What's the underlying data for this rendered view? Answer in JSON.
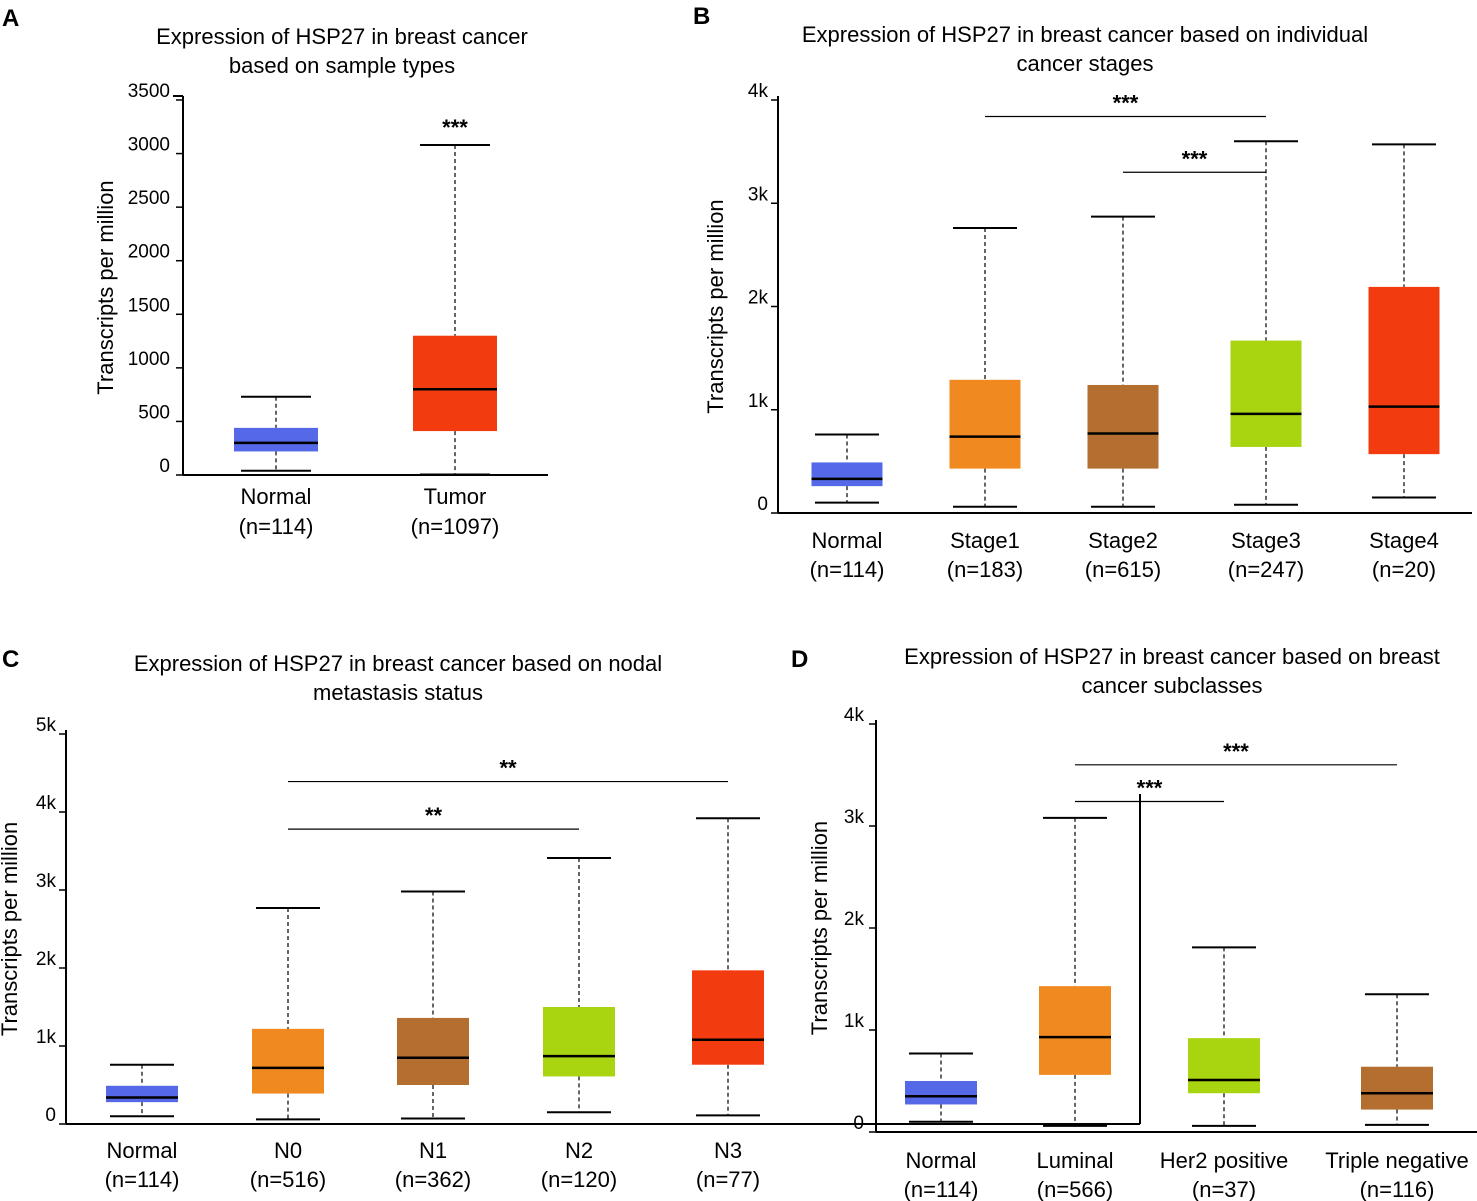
{
  "chart_data": [
    {
      "id": "A",
      "type": "box",
      "panel_label": "A",
      "title": [
        "Expression of HSP27 in breast cancer",
        "based on sample types"
      ],
      "ylabel": "Transcripts per million",
      "ylim": [
        0,
        3500
      ],
      "yticks": [
        0,
        500,
        1000,
        1500,
        2000,
        2500,
        3000,
        3500
      ],
      "ytick_labels": [
        "0",
        "500",
        "1000",
        "1500",
        "2000",
        "2500",
        "3000",
        "3500"
      ],
      "categories": [
        {
          "name": "Normal",
          "n": "(n=114)",
          "color": "#5468e8",
          "whisker_low": 40,
          "q1": 220,
          "median": 300,
          "q3": 440,
          "whisker_high": 730
        },
        {
          "name": "Tumor",
          "n": "(n=1097)",
          "color": "#f23c10",
          "whisker_low": 5,
          "q1": 410,
          "median": 800,
          "q3": 1300,
          "whisker_high": 3080
        }
      ],
      "significance": [
        {
          "label": "***",
          "category": 1
        }
      ]
    },
    {
      "id": "B",
      "type": "box",
      "panel_label": "B",
      "title": [
        "Expression of HSP27 in breast cancer based on individual",
        "cancer stages"
      ],
      "ylabel": "Transcripts per million",
      "ylim": [
        0,
        4000
      ],
      "yticks": [
        0,
        1000,
        2000,
        3000,
        4000
      ],
      "ytick_labels": [
        "0",
        "1k",
        "2k",
        "3k",
        "4k"
      ],
      "categories": [
        {
          "name": "Normal",
          "n": "(n=114)",
          "color": "#5468e8",
          "whisker_low": 100,
          "q1": 260,
          "median": 330,
          "q3": 490,
          "whisker_high": 760
        },
        {
          "name": "Stage1",
          "n": "(n=183)",
          "color": "#f08a20",
          "whisker_low": 60,
          "q1": 430,
          "median": 740,
          "q3": 1290,
          "whisker_high": 2760
        },
        {
          "name": "Stage2",
          "n": "(n=615)",
          "color": "#b36e30",
          "whisker_low": 60,
          "q1": 430,
          "median": 770,
          "q3": 1240,
          "whisker_high": 2870
        },
        {
          "name": "Stage3",
          "n": "(n=247)",
          "color": "#a8d410",
          "whisker_low": 80,
          "q1": 640,
          "median": 960,
          "q3": 1670,
          "whisker_high": 3600
        },
        {
          "name": "Stage4",
          "n": "(n=20)",
          "color": "#f23c10",
          "whisker_low": 150,
          "q1": 570,
          "median": 1030,
          "q3": 2190,
          "whisker_high": 3570
        }
      ],
      "significance": [
        {
          "label": "***",
          "from": 1,
          "to": 3,
          "level": 3840
        },
        {
          "label": "***",
          "from": 2,
          "to": 3,
          "level": 3300
        }
      ]
    },
    {
      "id": "C",
      "type": "box",
      "panel_label": "C",
      "title": [
        "Expression of HSP27 in breast cancer based on nodal",
        "metastasis status"
      ],
      "ylabel": "Transcripts per million",
      "ylim": [
        0,
        5000
      ],
      "yticks": [
        0,
        1000,
        2000,
        3000,
        4000,
        5000
      ],
      "ytick_labels": [
        "0",
        "1k",
        "2k",
        "3k",
        "4k",
        "5k"
      ],
      "categories": [
        {
          "name": "Normal",
          "n": "(n=114)",
          "color": "#5468e8",
          "whisker_low": 100,
          "q1": 280,
          "median": 340,
          "q3": 490,
          "whisker_high": 760
        },
        {
          "name": "N0",
          "n": "(n=516)",
          "color": "#f08a20",
          "whisker_low": 60,
          "q1": 390,
          "median": 720,
          "q3": 1220,
          "whisker_high": 2770
        },
        {
          "name": "N1",
          "n": "(n=362)",
          "color": "#b36e30",
          "whisker_low": 70,
          "q1": 500,
          "median": 850,
          "q3": 1360,
          "whisker_high": 2980
        },
        {
          "name": "N2",
          "n": "(n=120)",
          "color": "#a8d410",
          "whisker_low": 150,
          "q1": 610,
          "median": 870,
          "q3": 1500,
          "whisker_high": 3410
        },
        {
          "name": "N3",
          "n": "(n=77)",
          "color": "#f23c10",
          "whisker_low": 110,
          "q1": 760,
          "median": 1080,
          "q3": 1970,
          "whisker_high": 3920
        }
      ],
      "significance": [
        {
          "label": "**",
          "from": 1,
          "to": 4,
          "level": 4390
        },
        {
          "label": "**",
          "from": 1,
          "to": 3,
          "level": 3780
        }
      ]
    },
    {
      "id": "D",
      "type": "box",
      "panel_label": "D",
      "title": [
        "Expression of HSP27 in breast cancer based on breast",
        "cancer subclasses"
      ],
      "ylabel": "Transcripts per million",
      "ylim": [
        0,
        4000
      ],
      "yticks": [
        0,
        1000,
        2000,
        3000,
        4000
      ],
      "ytick_labels": [
        "0",
        "1k",
        "2k",
        "3k",
        "4k"
      ],
      "categories": [
        {
          "name": "Normal",
          "n": "(n=114)",
          "color": "#5468e8",
          "whisker_low": 100,
          "q1": 270,
          "median": 350,
          "q3": 500,
          "whisker_high": 770
        },
        {
          "name": "Luminal",
          "n": "(n=566)",
          "color": "#f08a20",
          "whisker_low": 60,
          "q1": 560,
          "median": 930,
          "q3": 1430,
          "whisker_high": 3080
        },
        {
          "name": "Her2 positive",
          "n": "(n=37)",
          "color": "#a8d410",
          "whisker_low": 60,
          "q1": 380,
          "median": 510,
          "q3": 920,
          "whisker_high": 1810
        },
        {
          "name": "Triple negative",
          "n": "(n=116)",
          "color": "#b36e30",
          "whisker_low": 70,
          "q1": 220,
          "median": 380,
          "q3": 640,
          "whisker_high": 1350
        }
      ],
      "significance": [
        {
          "label": "***",
          "from": 1,
          "to": 3,
          "level": 3600
        },
        {
          "label": "***",
          "from": 1,
          "to": 2,
          "level": 3240
        }
      ]
    }
  ]
}
